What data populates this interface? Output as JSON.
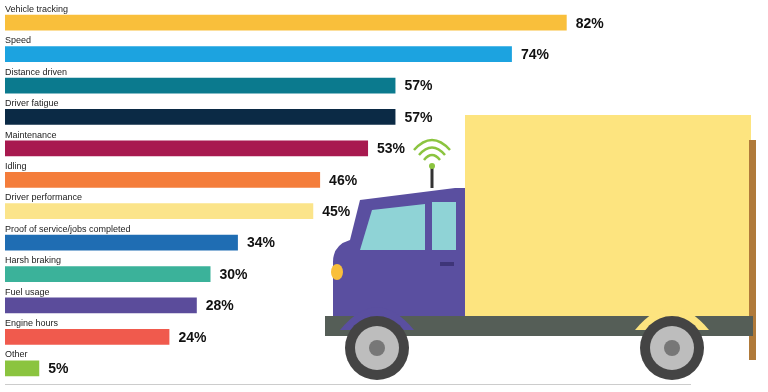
{
  "chart_data": {
    "type": "bar",
    "orientation": "horizontal",
    "categories": [
      "Vehicle tracking",
      "Speed",
      "Distance driven",
      "Driver fatigue",
      "Maintenance",
      "Idling",
      "Driver performance",
      "Proof of service/jobs completed",
      "Harsh braking",
      "Fuel usage",
      "Engine hours",
      "Other"
    ],
    "values": [
      82,
      74,
      57,
      57,
      53,
      46,
      45,
      34,
      30,
      28,
      24,
      5
    ],
    "value_labels": [
      "82%",
      "74%",
      "57%",
      "57%",
      "53%",
      "46%",
      "45%",
      "34%",
      "30%",
      "28%",
      "24%",
      "5%"
    ],
    "colors": [
      "#f9bf3b",
      "#1ca3e0",
      "#0b7a8e",
      "#0b2a45",
      "#a8194f",
      "#f47d3b",
      "#fbe48a",
      "#1f6db3",
      "#3bb29a",
      "#5b4c9b",
      "#f05a4d",
      "#8bc43f"
    ],
    "xlim": [
      0,
      100
    ],
    "grid": false,
    "tick_labels": false,
    "data_labels": true
  }
}
